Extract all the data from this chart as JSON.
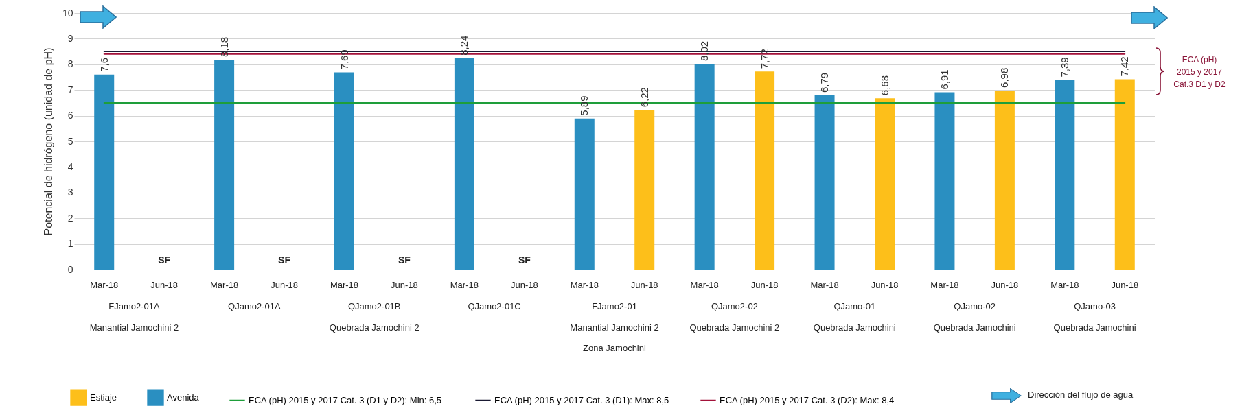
{
  "chart_data": {
    "type": "bar",
    "ylabel": "Potencial de hidrógeno (unidad de pH)",
    "categories": [
      "Mar-18",
      "Jun-18",
      "Mar-18",
      "Jun-18",
      "Mar-18",
      "Jun-18",
      "Mar-18",
      "Jun-18",
      "Mar-18",
      "Jun-18",
      "Mar-18",
      "Jun-18",
      "Mar-18",
      "Jun-18",
      "Mar-18",
      "Jun-18",
      "Mar-18",
      "Jun-18"
    ],
    "series": [
      {
        "name": "Estiaje",
        "color": "#fdbf1a",
        "values": [
          null,
          null,
          null,
          null,
          null,
          null,
          null,
          null,
          null,
          6.22,
          null,
          7.72,
          null,
          6.68,
          null,
          6.98,
          null,
          7.42
        ],
        "value_labels": [
          null,
          "SF",
          null,
          "SF",
          null,
          "SF",
          null,
          "SF",
          null,
          "6,22",
          null,
          "7,72",
          null,
          "6,68",
          null,
          "6,98",
          null,
          "7,42"
        ]
      },
      {
        "name": "Avenida",
        "color": "#2a8fc1",
        "values": [
          7.6,
          null,
          8.18,
          null,
          7.69,
          null,
          8.24,
          null,
          5.89,
          null,
          8.02,
          null,
          6.79,
          null,
          6.91,
          null,
          7.39,
          null
        ],
        "value_labels": [
          "7,6",
          null,
          "8,18",
          null,
          "7,69",
          null,
          "8,24",
          null,
          "5,89",
          null,
          "8,02",
          null,
          "6,79",
          null,
          "6,91",
          null,
          "7,39",
          null
        ]
      }
    ],
    "ylim": [
      0,
      10
    ],
    "yticks": [
      0,
      1,
      2,
      3,
      4,
      5,
      6,
      7,
      8,
      9,
      10
    ],
    "grid": "y",
    "legend": "bottom",
    "ref_lines": [
      {
        "axis": "y",
        "value": 6.5,
        "label": "ECA (pH)  2015 y 2017 Cat. 3 (D1 y D2): Min: 6,5",
        "color": "#1e9e3a"
      },
      {
        "axis": "y",
        "value": 8.5,
        "label": "ECA (pH) 2015 y 2017 Cat. 3 (D1): Max: 8,5",
        "color": "#1a1a33"
      },
      {
        "axis": "y",
        "value": 8.4,
        "label": "ECA (pH)  2015 y 2017 Cat. 3 (D2): Max: 8,4",
        "color": "#a3123a"
      }
    ],
    "annotations": [
      "FJamo2-01A",
      "QJamo2-01A",
      "QJamo2-01B",
      "QJamo2-01C",
      "FJamo2-01",
      "QJamo2-02",
      "QJamo-01",
      "QJamo-02",
      "QJamo-03",
      "Manantial Jamochini 2",
      "Quebrada Jamochini 2",
      "Manantial Jamochini 2",
      "Quebrada Jamochini 2",
      "Quebrada Jamochini",
      "Quebrada Jamochini",
      "Quebrada Jamochini",
      "Zona Jamochini",
      "ECA (pH)\n2015 y 2017\nCat.3 D1 y D2",
      "Dirección del flujo de agua"
    ]
  }
}
